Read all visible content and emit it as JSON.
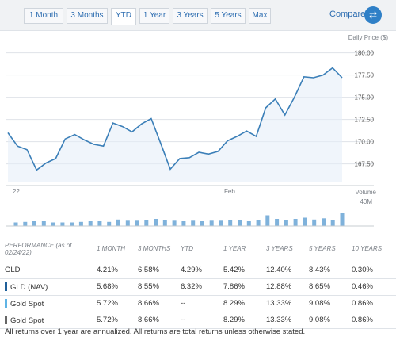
{
  "tabs": [
    "1 Month",
    "3 Months",
    "YTD",
    "1 Year",
    "3 Years",
    "5 Years",
    "Max"
  ],
  "active_tab": "YTD",
  "compare_label": "Compare",
  "colors": {
    "line": "#3b7fb8",
    "fill": "#e3edf7",
    "volume": "#7fb2db",
    "grid": "#dfe3e8",
    "accent": "#2f80c7",
    "nav_swatch": "#1f5f99",
    "spot_swatch": "#5fb4e5",
    "spot2_swatch": "#666666"
  },
  "chart_data": {
    "type": "line",
    "y_axis_label": "Daily Price ($)",
    "y_ticks": [
      "180.00",
      "177.50",
      "175.00",
      "172.50",
      "170.00",
      "167.50"
    ],
    "ylim": [
      165.5,
      180.5
    ],
    "x_labels": [
      "22",
      "Feb"
    ],
    "series": [
      {
        "values": [
          171.0,
          169.5,
          169.1,
          166.8,
          167.6,
          168.1,
          170.3,
          170.8,
          170.2,
          169.7,
          169.5,
          172.1,
          171.7,
          171.1,
          172.0,
          172.6,
          169.8,
          166.9,
          168.1,
          168.2,
          168.8,
          168.6,
          168.9,
          170.1,
          170.6,
          171.2,
          170.6,
          173.8,
          174.8,
          173.0,
          175.0,
          177.3,
          177.2,
          177.5,
          178.3,
          177.2
        ]
      }
    ],
    "volume_label": "Volume",
    "volume_max_label": "40M",
    "volume_values": [
      6,
      7,
      8,
      8,
      6,
      6,
      6,
      7,
      8,
      8,
      7,
      11,
      9,
      9,
      10,
      12,
      10,
      9,
      8,
      9,
      8,
      9,
      9,
      10,
      10,
      8,
      10,
      18,
      12,
      10,
      12,
      14,
      11,
      13,
      10,
      22
    ],
    "volume_max": 40
  },
  "table": {
    "headers": [
      "PERFORMANCE (as of 02/24/22)",
      "1 MONTH",
      "3 MONTHS",
      "YTD",
      "1 YEAR",
      "3 YEARS",
      "5 YEARS",
      "10 YEARS"
    ],
    "rows": [
      {
        "name": "GLD",
        "cells": [
          "4.21%",
          "6.58%",
          "4.29%",
          "5.42%",
          "12.40%",
          "8.43%",
          "0.30%"
        ]
      },
      {
        "name": "GLD (NAV)",
        "cells": [
          "5.68%",
          "8.55%",
          "6.32%",
          "7.86%",
          "12.88%",
          "8.65%",
          "0.46%"
        ]
      },
      {
        "name": "Gold Spot",
        "cells": [
          "5.72%",
          "8.66%",
          "--",
          "8.29%",
          "13.33%",
          "9.08%",
          "0.86%"
        ]
      },
      {
        "name": "Gold Spot",
        "cells": [
          "5.72%",
          "8.66%",
          "--",
          "8.29%",
          "13.33%",
          "9.08%",
          "0.86%"
        ]
      }
    ]
  },
  "footnote": "All returns over 1 year are annualized. All returns are total returns unless otherwise stated."
}
